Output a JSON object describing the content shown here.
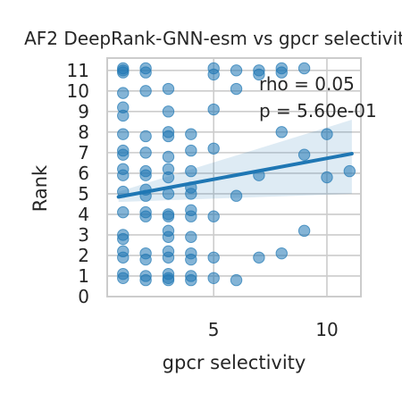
{
  "chart_data": {
    "type": "scatter",
    "title": "AF2 DeepRank-GNN-esm vs gpcr selectivity",
    "xlabel": "gpcr selectivity",
    "ylabel": "Rank",
    "xlim": [
      0.3,
      11.5
    ],
    "ylim": [
      0,
      11.6
    ],
    "xticks": [
      5,
      10
    ],
    "yticks": [
      0,
      1,
      2,
      3,
      4,
      5,
      6,
      7,
      8,
      9,
      10,
      11
    ],
    "grid": true,
    "annotations": [
      "rho = 0.05",
      "p = 5.60e-01"
    ],
    "regression": {
      "x": [
        0.8,
        11.1
      ],
      "y": [
        4.85,
        6.95
      ],
      "ci_upper_end": 8.6,
      "ci_lower_end": 5.0,
      "ci_upper_start": 5.1,
      "ci_lower_start": 4.6
    },
    "colors": {
      "points": "#1f77b4",
      "line": "#1f77b4",
      "band": "#1f77b4",
      "grid": "#cccccc"
    },
    "points": [
      {
        "x": 1,
        "y": 11.1
      },
      {
        "x": 1,
        "y": 10.9
      },
      {
        "x": 1,
        "y": 11.0
      },
      {
        "x": 2,
        "y": 11.1
      },
      {
        "x": 2,
        "y": 10.9
      },
      {
        "x": 5,
        "y": 11.1
      },
      {
        "x": 5,
        "y": 10.8
      },
      {
        "x": 6,
        "y": 11.0
      },
      {
        "x": 7,
        "y": 10.8
      },
      {
        "x": 7,
        "y": 11.0
      },
      {
        "x": 8,
        "y": 11.1
      },
      {
        "x": 8,
        "y": 10.9
      },
      {
        "x": 9,
        "y": 11.1
      },
      {
        "x": 1,
        "y": 9.9
      },
      {
        "x": 2,
        "y": 10.0
      },
      {
        "x": 3,
        "y": 10.1
      },
      {
        "x": 6,
        "y": 10.1
      },
      {
        "x": 1,
        "y": 9.2
      },
      {
        "x": 1,
        "y": 8.8
      },
      {
        "x": 3,
        "y": 9.0
      },
      {
        "x": 5,
        "y": 9.1
      },
      {
        "x": 1,
        "y": 7.9
      },
      {
        "x": 2,
        "y": 7.8
      },
      {
        "x": 3,
        "y": 8.0
      },
      {
        "x": 3,
        "y": 7.8
      },
      {
        "x": 4,
        "y": 7.9
      },
      {
        "x": 8,
        "y": 8.0
      },
      {
        "x": 10,
        "y": 7.9
      },
      {
        "x": 1,
        "y": 7.1
      },
      {
        "x": 1,
        "y": 6.9
      },
      {
        "x": 2,
        "y": 7.0
      },
      {
        "x": 3,
        "y": 6.8
      },
      {
        "x": 4,
        "y": 7.1
      },
      {
        "x": 5,
        "y": 7.2
      },
      {
        "x": 9,
        "y": 6.9
      },
      {
        "x": 1,
        "y": 6.2
      },
      {
        "x": 1,
        "y": 5.9
      },
      {
        "x": 2,
        "y": 6.1
      },
      {
        "x": 2,
        "y": 5.9
      },
      {
        "x": 3,
        "y": 6.2
      },
      {
        "x": 3,
        "y": 5.8
      },
      {
        "x": 4,
        "y": 6.1
      },
      {
        "x": 7,
        "y": 5.9
      },
      {
        "x": 10,
        "y": 5.8
      },
      {
        "x": 11,
        "y": 6.1
      },
      {
        "x": 1,
        "y": 5.1
      },
      {
        "x": 2,
        "y": 4.9
      },
      {
        "x": 2,
        "y": 5.2
      },
      {
        "x": 3,
        "y": 5.0
      },
      {
        "x": 4,
        "y": 5.3
      },
      {
        "x": 4,
        "y": 5.0
      },
      {
        "x": 6,
        "y": 4.9
      },
      {
        "x": 1,
        "y": 4.1
      },
      {
        "x": 2,
        "y": 3.9
      },
      {
        "x": 2,
        "y": 4.1
      },
      {
        "x": 3,
        "y": 4.0
      },
      {
        "x": 3,
        "y": 3.9
      },
      {
        "x": 4,
        "y": 4.2
      },
      {
        "x": 4,
        "y": 3.9
      },
      {
        "x": 5,
        "y": 3.9
      },
      {
        "x": 1,
        "y": 3.0
      },
      {
        "x": 1,
        "y": 2.8
      },
      {
        "x": 3,
        "y": 3.2
      },
      {
        "x": 3,
        "y": 2.9
      },
      {
        "x": 4,
        "y": 2.9
      },
      {
        "x": 9,
        "y": 3.2
      },
      {
        "x": 1,
        "y": 2.2
      },
      {
        "x": 1,
        "y": 1.9
      },
      {
        "x": 2,
        "y": 2.1
      },
      {
        "x": 2,
        "y": 1.8
      },
      {
        "x": 3,
        "y": 2.2
      },
      {
        "x": 3,
        "y": 1.9
      },
      {
        "x": 4,
        "y": 2.1
      },
      {
        "x": 4,
        "y": 1.8
      },
      {
        "x": 5,
        "y": 1.9
      },
      {
        "x": 7,
        "y": 1.9
      },
      {
        "x": 8,
        "y": 2.1
      },
      {
        "x": 1,
        "y": 1.1
      },
      {
        "x": 1,
        "y": 0.9
      },
      {
        "x": 2,
        "y": 1.0
      },
      {
        "x": 2,
        "y": 0.8
      },
      {
        "x": 3,
        "y": 1.1
      },
      {
        "x": 3,
        "y": 0.9
      },
      {
        "x": 3,
        "y": 0.8
      },
      {
        "x": 4,
        "y": 1.0
      },
      {
        "x": 4,
        "y": 0.8
      },
      {
        "x": 5,
        "y": 0.9
      },
      {
        "x": 6,
        "y": 0.8
      }
    ]
  }
}
